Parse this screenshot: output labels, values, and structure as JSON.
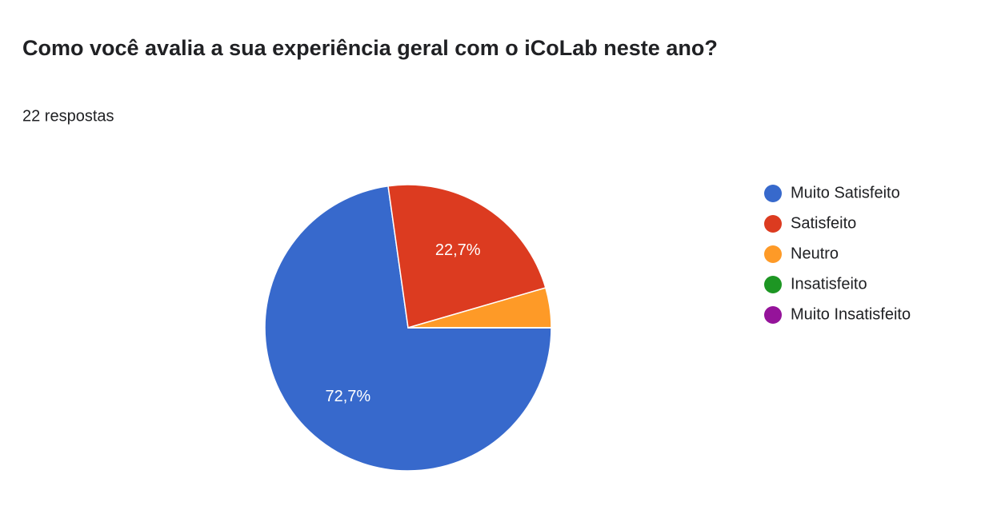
{
  "chart_data": {
    "type": "pie",
    "title": "Como você avalia a sua experiência geral com o iCoLab neste ano?",
    "subtitle": "22 respostas",
    "categories": [
      "Muito Satisfeito",
      "Satisfeito",
      "Neutro",
      "Insatisfeito",
      "Muito Insatisfeito"
    ],
    "values": [
      72.7,
      22.7,
      4.5,
      0,
      0
    ],
    "value_labels": [
      "72,7%",
      "22,7%",
      null,
      null,
      null
    ],
    "colors": [
      "#3769cc",
      "#dc3b20",
      "#fe9a27",
      "#1d9623",
      "#95139a"
    ],
    "legend": "right"
  }
}
